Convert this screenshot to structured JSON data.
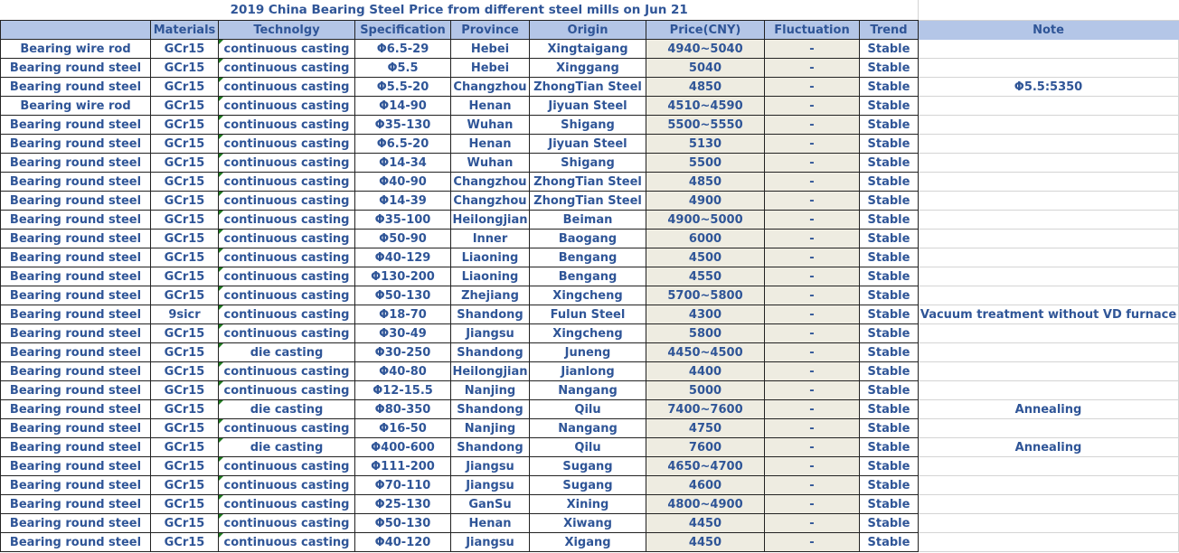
{
  "title": "2019 China Bearing Steel Price from different steel mills on Jun 21",
  "headers": [
    "",
    "Materials",
    "Technolgy",
    "Specification",
    "Province",
    "Origin",
    "Price(CNY)",
    "Fluctuation",
    "Trend",
    "Note"
  ],
  "rows": [
    [
      "Bearing wire rod",
      "GCr15",
      "continuous casting",
      "Φ6.5-29",
      "Hebei",
      "Xingtaigang",
      "4940~5040",
      "-",
      "Stable",
      ""
    ],
    [
      "Bearing round steel",
      "GCr15",
      "continuous casting",
      "Φ5.5",
      "Hebei",
      "Xinggang",
      "5040",
      "-",
      "Stable",
      ""
    ],
    [
      "Bearing round steel",
      "GCr15",
      "continuous casting",
      "Φ5.5-20",
      "Changzhou",
      "ZhongTian Steel",
      "4850",
      "-",
      "Stable",
      "Φ5.5:5350"
    ],
    [
      "Bearing wire rod",
      "GCr15",
      "continuous casting",
      "Φ14-90",
      "Henan",
      "Jiyuan Steel",
      "4510~4590",
      "-",
      "Stable",
      ""
    ],
    [
      "Bearing round steel",
      "GCr15",
      "continuous casting",
      "Φ35-130",
      "Wuhan",
      "Shigang",
      "5500~5550",
      "-",
      "Stable",
      ""
    ],
    [
      "Bearing round steel",
      "GCr15",
      "continuous casting",
      "Φ6.5-20",
      "Henan",
      "Jiyuan Steel",
      "5130",
      "-",
      "Stable",
      ""
    ],
    [
      "Bearing round steel",
      "GCr15",
      "continuous casting",
      "Φ14-34",
      "Wuhan",
      "Shigang",
      "5500",
      "-",
      "Stable",
      ""
    ],
    [
      "Bearing round steel",
      "GCr15",
      "continuous casting",
      "Φ40-90",
      "Changzhou",
      "ZhongTian Steel",
      "4850",
      "-",
      "Stable",
      ""
    ],
    [
      "Bearing round steel",
      "GCr15",
      "continuous casting",
      "Φ14-39",
      "Changzhou",
      "ZhongTian Steel",
      "4900",
      "-",
      "Stable",
      ""
    ],
    [
      "Bearing round steel",
      "GCr15",
      "continuous casting",
      "Φ35-100",
      "Heilongjian",
      "Beiman",
      "4900~5000",
      "-",
      "Stable",
      ""
    ],
    [
      "Bearing round steel",
      "GCr15",
      "continuous casting",
      "Φ50-90",
      "Inner",
      "Baogang",
      "6000",
      "-",
      "Stable",
      ""
    ],
    [
      "Bearing round steel",
      "GCr15",
      "continuous casting",
      "Φ40-129",
      "Liaoning",
      "Bengang",
      "4500",
      "-",
      "Stable",
      ""
    ],
    [
      "Bearing round steel",
      "GCr15",
      "continuous casting",
      "Φ130-200",
      "Liaoning",
      "Bengang",
      "4550",
      "-",
      "Stable",
      ""
    ],
    [
      "Bearing round steel",
      "GCr15",
      "continuous casting",
      "Φ50-130",
      "Zhejiang",
      "Xingcheng",
      "5700~5800",
      "-",
      "Stable",
      ""
    ],
    [
      "Bearing round steel",
      "9sicr",
      "continuous casting",
      "Φ18-70",
      "Shandong",
      "Fulun Steel",
      "4300",
      "-",
      "Stable",
      "Vacuum treatment without VD furnace"
    ],
    [
      "Bearing round steel",
      "GCr15",
      "continuous casting",
      "Φ30-49",
      "Jiangsu",
      "Xingcheng",
      "5800",
      "-",
      "Stable",
      ""
    ],
    [
      "Bearing round steel",
      "GCr15",
      "die casting",
      "Φ30-250",
      "Shandong",
      "Juneng",
      "4450~4500",
      "-",
      "Stable",
      ""
    ],
    [
      "Bearing round steel",
      "GCr15",
      "continuous casting",
      "Φ40-80",
      "Heilongjian",
      "Jianlong",
      "4400",
      "-",
      "Stable",
      ""
    ],
    [
      "Bearing round steel",
      "GCr15",
      "continuous casting",
      "Φ12-15.5",
      "Nanjing",
      "Nangang",
      "5000",
      "-",
      "Stable",
      ""
    ],
    [
      "Bearing round steel",
      "GCr15",
      "die casting",
      "Φ80-350",
      "Shandong",
      "Qilu",
      "7400~7600",
      "-",
      "Stable",
      "Annealing"
    ],
    [
      "Bearing round steel",
      "GCr15",
      "continuous casting",
      "Φ16-50",
      "Nanjing",
      "Nangang",
      "4750",
      "-",
      "Stable",
      ""
    ],
    [
      "Bearing round steel",
      "GCr15",
      "die casting",
      "Φ400-600",
      "Shandong",
      "Qilu",
      "7600",
      "-",
      "Stable",
      "Annealing"
    ],
    [
      "Bearing round steel",
      "GCr15",
      "continuous casting",
      "Φ111-200",
      "Jiangsu",
      "Sugang",
      "4650~4700",
      "-",
      "Stable",
      ""
    ],
    [
      "Bearing round steel",
      "GCr15",
      "continuous casting",
      "Φ70-110",
      "Jiangsu",
      "Sugang",
      "4600",
      "-",
      "Stable",
      ""
    ],
    [
      "Bearing round steel",
      "GCr15",
      "continuous casting",
      "Φ25-130",
      "GanSu",
      "Xining",
      "4800~4900",
      "-",
      "Stable",
      ""
    ],
    [
      "Bearing round steel",
      "GCr15",
      "continuous casting",
      "Φ50-130",
      "Henan",
      "Xiwang",
      "4450",
      "-",
      "Stable",
      ""
    ],
    [
      "Bearing round steel",
      "GCr15",
      "continuous casting",
      "Φ40-120",
      "Jiangsu",
      "Xigang",
      "4450",
      "-",
      "Stable",
      ""
    ]
  ],
  "colors": {
    "header_bg": "#b4c6e7",
    "price_bg": "#eeece1",
    "text": "#2f5597"
  }
}
